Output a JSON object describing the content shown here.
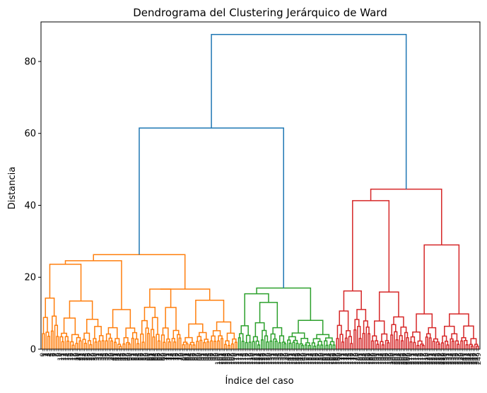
{
  "chart_data": {
    "type": "dendrogram",
    "title": "Dendrograma del Clustering Jerárquico de Ward",
    "xlabel": "Índice del caso",
    "ylabel": "Distancia",
    "ylim": [
      0,
      91
    ],
    "yticks": [
      0,
      20,
      40,
      60,
      80
    ],
    "grid": false,
    "colors": {
      "above_threshold": "#1f77b4",
      "cluster_1": "#ff7f0e",
      "cluster_2": "#2ca02c",
      "cluster_3": "#d62728"
    },
    "leaf_count": 250,
    "leaf_counts_by_cluster": {
      "cluster_1": 112,
      "cluster_2": 56,
      "cluster_3": 82
    },
    "merges": {
      "root": 87.5,
      "orange_green": 61.5,
      "red_top": 44.5,
      "red_left": 41.3,
      "red_right": 29.0,
      "orange_top": 26.3,
      "orange_left": 24.6,
      "orange_mid": 23.6,
      "orange_right": 16.7,
      "orange_far_right": 13.6,
      "green_top": 17.0,
      "green_left": 15.4,
      "red_a": 16.2,
      "red_b": 15.9,
      "red_c": 9.8,
      "red_d": 9.8
    }
  }
}
